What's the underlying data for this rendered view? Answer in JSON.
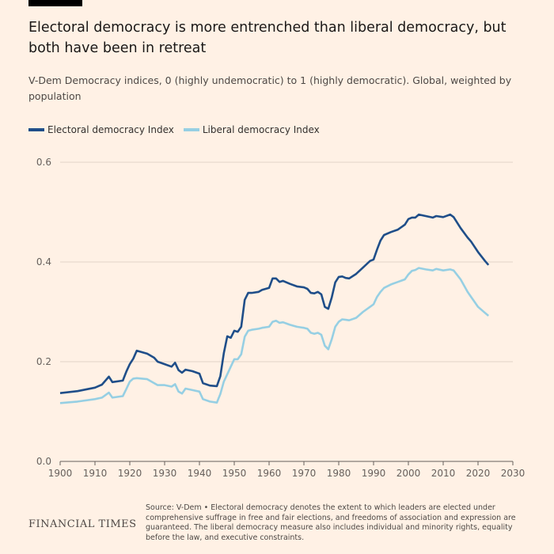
{
  "title": "Electoral democracy is more entrenched than liberal democracy, but both have been in retreat",
  "subtitle": "V-Dem Democracy indices, 0 (highly undemocratic) to 1 (highly democratic). Global, weighted by population",
  "source": "Source: V-Dem • Electoral democracy denotes the extent to which leaders are elected under comprehensive suffrage in free and fair elections, and freedoms of association and expression are guaranteed. The liberal democracy measure also includes individual and minority rights, equality before the law, and executive constraints.",
  "logo": "FINANCIAL TIMES",
  "chart_data": {
    "type": "line",
    "xlim": [
      1900,
      2030
    ],
    "ylim": [
      0,
      0.6
    ],
    "xticks": [
      "1900",
      "1910",
      "1920",
      "1930",
      "1940",
      "1950",
      "1960",
      "1970",
      "1980",
      "1990",
      "2000",
      "2010",
      "2020",
      "2030"
    ],
    "yticks": [
      "0.0",
      "0.2",
      "0.4",
      "0.6"
    ],
    "grid": "horizontal",
    "legend": "top-left",
    "x": [
      1900,
      1905,
      1910,
      1912,
      1914,
      1915,
      1918,
      1919,
      1920,
      1921,
      1922,
      1925,
      1927,
      1928,
      1930,
      1932,
      1933,
      1934,
      1935,
      1936,
      1938,
      1940,
      1941,
      1943,
      1945,
      1946,
      1947,
      1948,
      1949,
      1950,
      1951,
      1952,
      1953,
      1954,
      1955,
      1957,
      1958,
      1960,
      1961,
      1962,
      1963,
      1964,
      1966,
      1968,
      1970,
      1971,
      1972,
      1973,
      1974,
      1975,
      1976,
      1977,
      1978,
      1979,
      1980,
      1981,
      1982,
      1983,
      1985,
      1987,
      1989,
      1990,
      1991,
      1992,
      1993,
      1995,
      1997,
      1999,
      2000,
      2001,
      2002,
      2003,
      2005,
      2007,
      2008,
      2010,
      2012,
      2013,
      2015,
      2017,
      2018,
      2020,
      2022,
      2023
    ],
    "series": [
      {
        "name": "Electoral democracy Index",
        "color": "#1f4e89",
        "values": [
          0.137,
          0.141,
          0.148,
          0.154,
          0.17,
          0.159,
          0.162,
          0.18,
          0.195,
          0.206,
          0.222,
          0.216,
          0.208,
          0.2,
          0.195,
          0.19,
          0.198,
          0.183,
          0.178,
          0.184,
          0.181,
          0.176,
          0.157,
          0.152,
          0.151,
          0.171,
          0.217,
          0.251,
          0.248,
          0.262,
          0.26,
          0.27,
          0.324,
          0.338,
          0.338,
          0.34,
          0.344,
          0.348,
          0.367,
          0.367,
          0.36,
          0.362,
          0.356,
          0.351,
          0.349,
          0.346,
          0.338,
          0.337,
          0.34,
          0.335,
          0.31,
          0.306,
          0.329,
          0.359,
          0.37,
          0.371,
          0.368,
          0.367,
          0.376,
          0.389,
          0.402,
          0.405,
          0.425,
          0.443,
          0.454,
          0.46,
          0.465,
          0.475,
          0.486,
          0.489,
          0.489,
          0.495,
          0.492,
          0.489,
          0.492,
          0.49,
          0.495,
          0.49,
          0.468,
          0.449,
          0.441,
          0.42,
          0.402,
          0.394
        ]
      },
      {
        "name": "Liberal democracy Index",
        "color": "#96cfe3",
        "values": [
          0.117,
          0.12,
          0.125,
          0.128,
          0.138,
          0.128,
          0.131,
          0.145,
          0.16,
          0.166,
          0.167,
          0.165,
          0.157,
          0.153,
          0.153,
          0.15,
          0.155,
          0.14,
          0.136,
          0.146,
          0.143,
          0.14,
          0.125,
          0.12,
          0.118,
          0.135,
          0.16,
          0.175,
          0.19,
          0.205,
          0.205,
          0.215,
          0.25,
          0.262,
          0.264,
          0.266,
          0.268,
          0.27,
          0.28,
          0.282,
          0.278,
          0.279,
          0.274,
          0.27,
          0.268,
          0.266,
          0.258,
          0.256,
          0.258,
          0.254,
          0.232,
          0.225,
          0.245,
          0.27,
          0.28,
          0.285,
          0.284,
          0.283,
          0.288,
          0.3,
          0.31,
          0.315,
          0.33,
          0.34,
          0.348,
          0.355,
          0.36,
          0.365,
          0.375,
          0.382,
          0.384,
          0.388,
          0.385,
          0.383,
          0.386,
          0.383,
          0.385,
          0.383,
          0.365,
          0.34,
          0.33,
          0.31,
          0.298,
          0.292
        ]
      }
    ]
  }
}
